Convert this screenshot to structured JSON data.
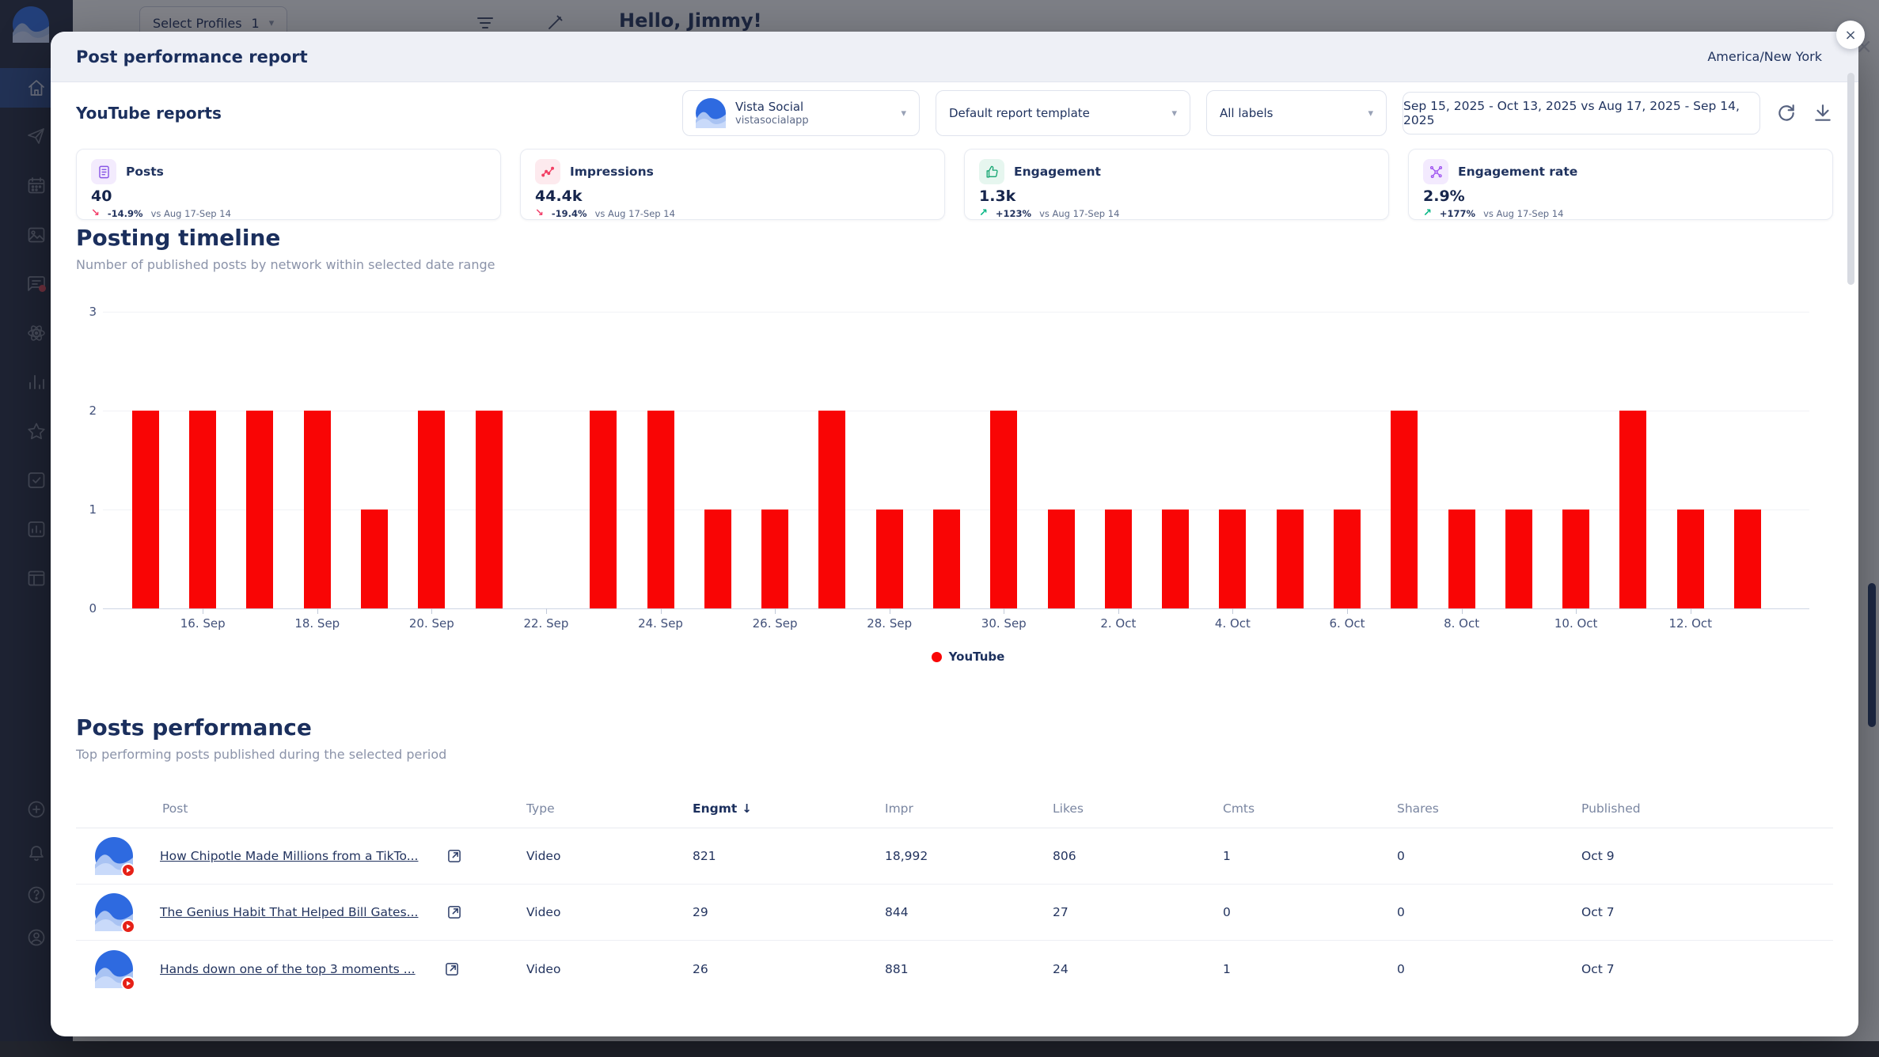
{
  "background": {
    "select_profiles": {
      "label": "Select Profiles",
      "count": "1"
    },
    "greeting": "Hello, Jimmy!",
    "sidebar_icons": [
      "vista-social-logo",
      "home-icon",
      "send-icon",
      "calendar-icon",
      "media-icon",
      "chat-icon",
      "connections-icon",
      "stats-icon",
      "star-icon",
      "inbox-icon",
      "report-icon",
      "window-icon",
      "add-icon",
      "bell-icon",
      "help-icon",
      "user-icon"
    ]
  },
  "modal": {
    "title": "Post performance report",
    "timezone": "America/New York",
    "close_glyph": "×",
    "section_title": "YouTube reports",
    "filters": {
      "profile": {
        "name": "Vista Social",
        "handle": "vistasocialapp"
      },
      "template": "Default report template",
      "labels": "All labels",
      "date_range": "Sep 15, 2025 - Oct 13, 2025 vs Aug 17, 2025 - Sep 14, 2025"
    },
    "stats": [
      {
        "label": "Posts",
        "value": "40",
        "delta": "-14.9%",
        "direction": "down",
        "compare": "vs Aug 17-Sep 14",
        "icon": "posts-icon",
        "accent": "#8957e5",
        "accent_bg": "#f3ebfd"
      },
      {
        "label": "Impressions",
        "value": "44.4k",
        "delta": "-19.4%",
        "direction": "down",
        "compare": "vs Aug 17-Sep 14",
        "icon": "impressions-icon",
        "accent": "#f23f63",
        "accent_bg": "#fdeaee"
      },
      {
        "label": "Engagement",
        "value": "1.3k",
        "delta": "+123%",
        "direction": "up",
        "compare": "vs Aug 17-Sep 14",
        "icon": "engagement-icon",
        "accent": "#17a673",
        "accent_bg": "#e6f6ef"
      },
      {
        "label": "Engagement rate",
        "value": "2.9%",
        "delta": "+177%",
        "direction": "up",
        "compare": "vs Aug 17-Sep 14",
        "icon": "engagement-rate-icon",
        "accent": "#9b4df0",
        "accent_bg": "#f3eafe"
      }
    ],
    "timeline": {
      "title": "Posting timeline",
      "subtitle": "Number of published posts by network within selected date range"
    },
    "posts": {
      "title": "Posts performance",
      "subtitle": "Top performing posts published during the selected period",
      "columns": [
        "Post",
        "Type",
        "Engmt",
        "Impr",
        "Likes",
        "Cmts",
        "Shares",
        "Published"
      ],
      "sorted_column": "Engmt",
      "sort_direction": "desc",
      "rows": [
        {
          "title": "How Chipotle Made Millions from a TikTo...",
          "type": "Video",
          "engmt": "821",
          "impr": "18,992",
          "likes": "806",
          "cmts": "1",
          "shares": "0",
          "published": "Oct 9"
        },
        {
          "title": "The Genius Habit That Helped Bill Gates...",
          "type": "Video",
          "engmt": "29",
          "impr": "844",
          "likes": "27",
          "cmts": "0",
          "shares": "0",
          "published": "Oct 7"
        },
        {
          "title": "Hands down one of the top 3 moments ...",
          "type": "Video",
          "engmt": "26",
          "impr": "881",
          "likes": "24",
          "cmts": "1",
          "shares": "0",
          "published": "Oct 7"
        }
      ]
    }
  },
  "chart_data": {
    "type": "bar",
    "title": "Posting timeline",
    "x": [
      "Sep 15",
      "Sep 16",
      "Sep 17",
      "Sep 18",
      "Sep 19",
      "Sep 20",
      "Sep 21",
      "Sep 22",
      "Sep 23",
      "Sep 24",
      "Sep 25",
      "Sep 26",
      "Sep 27",
      "Sep 28",
      "Sep 29",
      "Sep 30",
      "Oct 1",
      "Oct 2",
      "Oct 3",
      "Oct 4",
      "Oct 5",
      "Oct 6",
      "Oct 7",
      "Oct 8",
      "Oct 9",
      "Oct 10",
      "Oct 11",
      "Oct 12",
      "Oct 13"
    ],
    "series": [
      {
        "name": "YouTube",
        "color": "#f90505",
        "values": [
          2,
          2,
          2,
          2,
          1,
          2,
          2,
          0,
          2,
          2,
          1,
          1,
          2,
          1,
          1,
          2,
          1,
          1,
          1,
          1,
          1,
          1,
          2,
          1,
          1,
          1,
          2,
          1,
          1
        ]
      }
    ],
    "x_tick_labels": [
      "16. Sep",
      "18. Sep",
      "20. Sep",
      "22. Sep",
      "24. Sep",
      "26. Sep",
      "28. Sep",
      "30. Sep",
      "2. Oct",
      "4. Oct",
      "6. Oct",
      "8. Oct",
      "10. Oct",
      "12. Oct"
    ],
    "yticks": [
      0,
      1,
      2,
      3
    ],
    "ylim": [
      0,
      3
    ],
    "grid": true,
    "legend_position": "bottom"
  }
}
